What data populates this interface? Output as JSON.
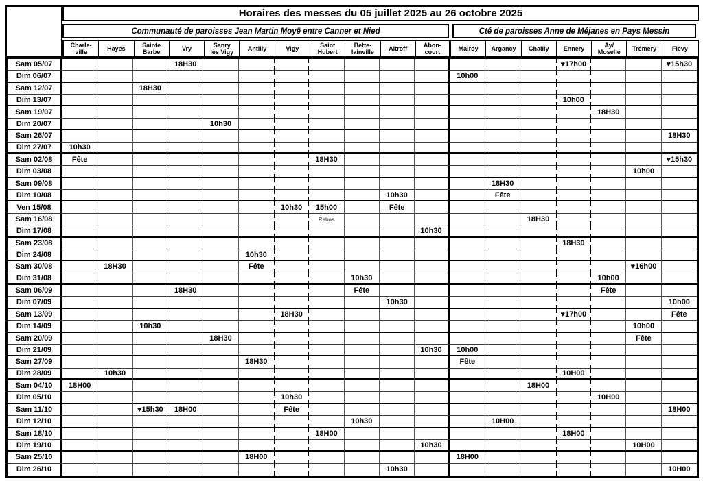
{
  "title": "Horaires des messes du 05 juillet 2025 au 26 octobre 2025",
  "groups": [
    {
      "label": "Communauté de paroisses Jean Martin Moyë entre Canner et Nied",
      "span": 11
    },
    {
      "label": "Cté de paroisses Anne de Méjanes en Pays Messin",
      "span": 7
    }
  ],
  "columns": [
    {
      "id": "charleville",
      "label": "Charle-\nville"
    },
    {
      "id": "hayes",
      "label": "Hayes"
    },
    {
      "id": "saintebarbe",
      "label": "Sainte\nBarbe"
    },
    {
      "id": "vry",
      "label": "Vry"
    },
    {
      "id": "sanry",
      "label": "Sanry\nlès Vigy"
    },
    {
      "id": "antilly",
      "label": "Antilly"
    },
    {
      "id": "vigy",
      "label": "Vigy",
      "dashed": true
    },
    {
      "id": "sainthubert",
      "label": "Saint\nHubert"
    },
    {
      "id": "bettelainville",
      "label": "Bette-\nlainville"
    },
    {
      "id": "altroff",
      "label": "Altroff"
    },
    {
      "id": "aboncourt",
      "label": "Abon-\ncourt",
      "divider": true
    },
    {
      "id": "malroy",
      "label": "Malroy"
    },
    {
      "id": "argancy",
      "label": "Argancy"
    },
    {
      "id": "chailly",
      "label": "Chailly"
    },
    {
      "id": "ennery",
      "label": "Ennery",
      "dashed": true
    },
    {
      "id": "aymoselle",
      "label": "Ay/\nMoselle"
    },
    {
      "id": "tremery",
      "label": "Trémery"
    },
    {
      "id": "flevy",
      "label": "Flévy"
    }
  ],
  "rows": [
    {
      "date": "Sam 05/07",
      "end": "thin",
      "cells": {
        "vry": "18H30",
        "ennery": "♥17h00",
        "flevy": "♥15h30"
      }
    },
    {
      "date": "Dim 06/07",
      "end": "pair",
      "cells": {
        "malroy": "10h00"
      }
    },
    {
      "date": "Sam 12/07",
      "end": "thin",
      "cells": {
        "saintebarbe": "18H30"
      }
    },
    {
      "date": "Dim 13/07",
      "end": "pair",
      "cells": {
        "ennery": "10h00"
      }
    },
    {
      "date": "Sam 19/07",
      "end": "thin",
      "cells": {
        "aymoselle": "18H30"
      }
    },
    {
      "date": "Dim 20/07",
      "end": "pair",
      "cells": {
        "sanry": "10h30"
      }
    },
    {
      "date": "Sam 26/07",
      "end": "thin",
      "cells": {
        "flevy": "18H30"
      }
    },
    {
      "date": "Dim 27/07",
      "end": "month",
      "cells": {
        "charleville": "10h30"
      }
    },
    {
      "date": "Sam 02/08",
      "end": "thin",
      "cells": {
        "charleville": "Fête",
        "sainthubert": "18H30",
        "flevy": "♥15h30"
      }
    },
    {
      "date": "Dim 03/08",
      "end": "pair",
      "cells": {
        "tremery": "10h00"
      }
    },
    {
      "date": "Sam 09/08",
      "end": "thin",
      "cells": {
        "argancy": "18H30"
      }
    },
    {
      "date": "Dim 10/08",
      "end": "pair",
      "cells": {
        "altroff": "10h30",
        "argancy": "Fête"
      }
    },
    {
      "date": "Ven 15/08",
      "end": "thin",
      "cells": {
        "vigy": "10h30",
        "sainthubert": "15h00",
        "altroff": "Fête"
      }
    },
    {
      "date": "Sam 16/08",
      "end": "thin",
      "cells": {
        "sainthubert": {
          "text": "Rabas",
          "small": true
        },
        "chailly": "18H30"
      }
    },
    {
      "date": "Dim 17/08",
      "end": "pair",
      "cells": {
        "aboncourt": "10h30"
      }
    },
    {
      "date": "Sam 23/08",
      "end": "thin",
      "cells": {
        "ennery": "18H30"
      }
    },
    {
      "date": "Dim 24/08",
      "end": "pair",
      "cells": {
        "antilly": "10h30"
      }
    },
    {
      "date": "Sam 30/08",
      "end": "thin",
      "cells": {
        "hayes": "18H30",
        "antilly": "Fête",
        "tremery": "♥16h00"
      }
    },
    {
      "date": "Dim 31/08",
      "end": "month",
      "cells": {
        "bettelainville": "10h30",
        "aymoselle": "10h00"
      }
    },
    {
      "date": "Sam 06/09",
      "end": "thin",
      "cells": {
        "vry": "18H30",
        "bettelainville": "Fête",
        "aymoselle": "Fête"
      }
    },
    {
      "date": "Dim 07/09",
      "end": "pair",
      "cells": {
        "altroff": "10h30",
        "flevy": "10h00"
      }
    },
    {
      "date": "Sam 13/09",
      "end": "thin",
      "cells": {
        "vigy": "18H30",
        "ennery": "♥17h00",
        "flevy": "Fête"
      }
    },
    {
      "date": "Dim 14/09",
      "end": "pair",
      "cells": {
        "saintebarbe": "10h30",
        "tremery": "10h00"
      }
    },
    {
      "date": "Sam 20/09",
      "end": "thin",
      "cells": {
        "sanry": "18H30",
        "tremery": "Fête"
      }
    },
    {
      "date": "Dim 21/09",
      "end": "pair",
      "cells": {
        "aboncourt": "10h30",
        "malroy": "10h00"
      }
    },
    {
      "date": "Sam 27/09",
      "end": "thin",
      "cells": {
        "antilly": "18H30",
        "malroy": "Fête"
      }
    },
    {
      "date": "Dim 28/09",
      "end": "month",
      "cells": {
        "hayes": "10h30",
        "ennery": "10H00"
      }
    },
    {
      "date": "Sam 04/10",
      "end": "thin",
      "cells": {
        "charleville": "18H00",
        "chailly": "18H00"
      }
    },
    {
      "date": "Dim 05/10",
      "end": "pair",
      "cells": {
        "vigy": "10h30",
        "aymoselle": "10H00"
      }
    },
    {
      "date": "Sam 11/10",
      "end": "thin",
      "cells": {
        "saintebarbe": "♥15h30",
        "vry": "18H00",
        "vigy": "Fête",
        "flevy": "18H00"
      }
    },
    {
      "date": "Dim 12/10",
      "end": "pair",
      "cells": {
        "bettelainville": "10h30",
        "argancy": "10H00"
      }
    },
    {
      "date": "Sam 18/10",
      "end": "thin",
      "cells": {
        "sainthubert": "18H00",
        "ennery": "18H00"
      }
    },
    {
      "date": "Dim 19/10",
      "end": "pair",
      "cells": {
        "aboncourt": "10h30",
        "tremery": "10H00"
      }
    },
    {
      "date": "Sam 25/10",
      "end": "thin",
      "cells": {
        "antilly": "18H00",
        "malroy": "18H00"
      }
    },
    {
      "date": "Dim 26/10",
      "end": "none",
      "cells": {
        "altroff": "10h30",
        "flevy": "10H00"
      }
    }
  ],
  "colors": {
    "border": "#000000",
    "background": "#ffffff",
    "text": "#000000"
  }
}
